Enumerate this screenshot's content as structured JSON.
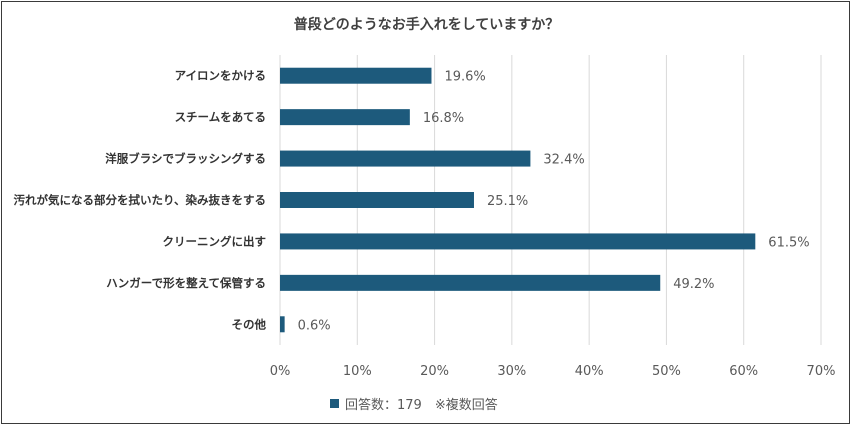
{
  "chart_data": {
    "type": "bar",
    "orientation": "horizontal",
    "title": "普段どのようなお手入れをしていますか？",
    "categories": [
      "アイロンをかける",
      "スチームをあてる",
      "洋服ブラシでブラッシングする",
      "汚れが気になる部分を拭いたり、染み抜きをする",
      "クリーニングに出す",
      "ハンガーで形を整えて保管する",
      "その他"
    ],
    "values": [
      19.6,
      16.8,
      32.4,
      25.1,
      61.5,
      49.2,
      0.6
    ],
    "value_labels": [
      "19.6%",
      "16.8%",
      "32.4%",
      "25.1%",
      "61.5%",
      "49.2%",
      "0.6%"
    ],
    "xlim": [
      0,
      70
    ],
    "x_ticks": [
      "0%",
      "10%",
      "20%",
      "30%",
      "40%",
      "50%",
      "60%",
      "70%"
    ],
    "grid": "vertical",
    "legend": {
      "label": "回答数：179　※複数回答",
      "placement": "bottom"
    },
    "colors": {
      "bar": "#1d5a7c",
      "grid": "#d9d9d9"
    }
  }
}
